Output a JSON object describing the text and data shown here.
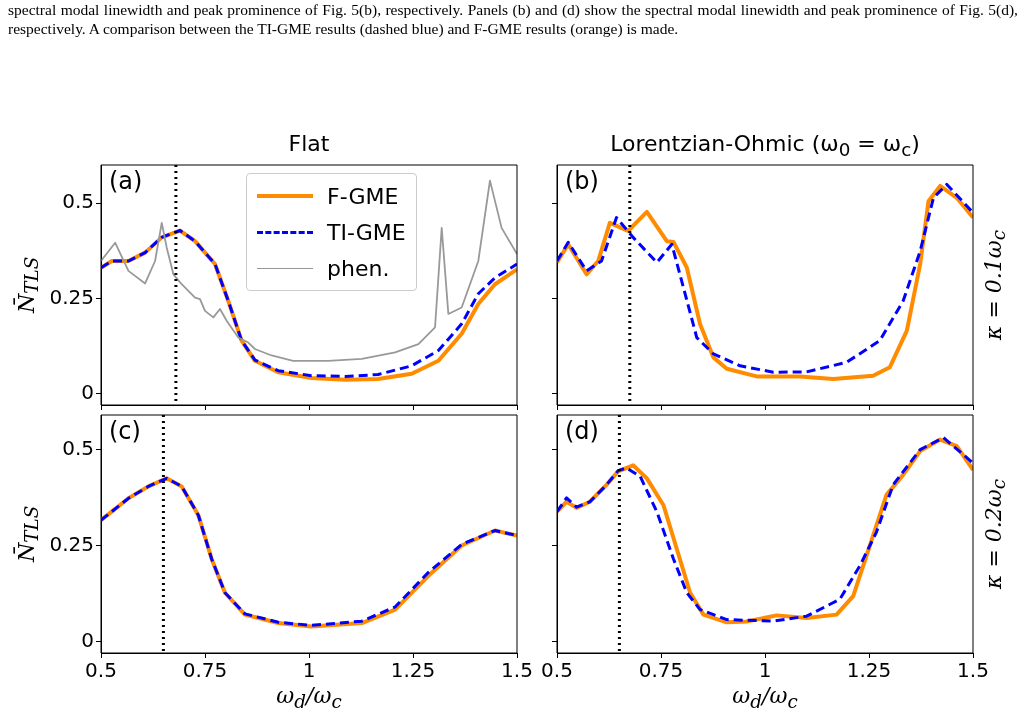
{
  "chart_data": [
    {
      "type": "other",
      "annotations": [
        "spectral modal linewidth and peak prominence of Fig. 5(b), respectively. Panels (b) and (d) show the spectral modal linewidth and peak prominence of Fig. 5(d), respectively. A comparison between the TI-GME results (dashed blue) and F-GME results (orange) is made."
      ]
    },
    {
      "type": "line",
      "title": "Flat",
      "ylabel": "N̄$_{TLS}$",
      "annotations": [
        "(a)"
      ],
      "xlim": [
        0.5,
        1.5
      ],
      "xticks": [
        0.5,
        0.75,
        1,
        1.25,
        1.5
      ],
      "ylim": [
        -0.03,
        0.6
      ],
      "yticks": [
        0,
        0.25,
        0.5
      ],
      "tick_labels": "y",
      "legend": "top",
      "ref_lines": [
        {
          "axis": "x",
          "value": 0.68,
          "color": "#000000",
          "line_style": "dotted"
        }
      ],
      "series": [
        {
          "name": "F-GME",
          "color": "#ff8c00",
          "line_style": "solid",
          "x": [
            0.5,
            0.526,
            0.566,
            0.606,
            0.646,
            0.69,
            0.726,
            0.774,
            0.806,
            0.838,
            0.87,
            0.926,
            1.006,
            1.087,
            1.166,
            1.247,
            1.311,
            1.367,
            1.407,
            1.447,
            1.5
          ],
          "values": [
            0.33,
            0.348,
            0.348,
            0.37,
            0.41,
            0.428,
            0.4,
            0.34,
            0.243,
            0.139,
            0.086,
            0.056,
            0.041,
            0.036,
            0.038,
            0.052,
            0.086,
            0.157,
            0.235,
            0.287,
            0.326
          ]
        },
        {
          "name": "TI-GME",
          "color": "#0000ff",
          "line_style": "dashed",
          "x": [
            0.5,
            0.526,
            0.566,
            0.606,
            0.646,
            0.69,
            0.726,
            0.774,
            0.806,
            0.838,
            0.87,
            0.926,
            1.006,
            1.087,
            1.166,
            1.247,
            1.311,
            1.367,
            1.407,
            1.447,
            1.5
          ],
          "values": [
            0.33,
            0.348,
            0.348,
            0.37,
            0.41,
            0.428,
            0.4,
            0.34,
            0.243,
            0.139,
            0.088,
            0.06,
            0.047,
            0.045,
            0.05,
            0.073,
            0.113,
            0.183,
            0.262,
            0.304,
            0.34
          ]
        },
        {
          "name": "phen.",
          "color": "#999999",
          "line_style": "solid",
          "x": [
            0.5,
            0.534,
            0.566,
            0.606,
            0.63,
            0.646,
            0.658,
            0.674,
            0.694,
            0.726,
            0.738,
            0.75,
            0.77,
            0.786,
            0.802,
            0.83,
            0.854,
            0.87,
            0.91,
            0.962,
            1.046,
            1.127,
            1.207,
            1.263,
            1.303,
            1.319,
            1.335,
            1.367,
            1.407,
            1.435,
            1.463,
            1.5
          ],
          "values": [
            0.348,
            0.396,
            0.322,
            0.289,
            0.348,
            0.448,
            0.383,
            0.313,
            0.287,
            0.252,
            0.248,
            0.217,
            0.2,
            0.222,
            0.191,
            0.147,
            0.134,
            0.117,
            0.1,
            0.086,
            0.086,
            0.091,
            0.108,
            0.13,
            0.174,
            0.435,
            0.209,
            0.226,
            0.348,
            0.559,
            0.435,
            0.366
          ]
        }
      ]
    },
    {
      "type": "line",
      "title": "Lorentzian-Ohmic (ω$_{0}$ = ω$_{c}$)",
      "y2label": "κ = 0.1ω$_{c}$",
      "annotations": [
        "(b)"
      ],
      "xlim": [
        0.5,
        1.5
      ],
      "xticks": [
        0.5,
        0.75,
        1,
        1.25,
        1.5
      ],
      "ylim": [
        -0.03,
        0.6
      ],
      "yticks": [
        0,
        0.25,
        0.5
      ],
      "tick_labels": false,
      "ref_lines": [
        {
          "axis": "x",
          "value": 0.675,
          "color": "#000000",
          "line_style": "dotted"
        }
      ],
      "series": [
        {
          "color": "#ff8c00",
          "line_style": "solid",
          "x": [
            0.5,
            0.527,
            0.571,
            0.599,
            0.627,
            0.671,
            0.716,
            0.764,
            0.78,
            0.812,
            0.844,
            0.876,
            0.908,
            0.98,
            1.084,
            1.164,
            1.26,
            1.3,
            1.341,
            1.373,
            1.393,
            1.421,
            1.461,
            1.5
          ],
          "values": [
            0.344,
            0.392,
            0.313,
            0.348,
            0.448,
            0.427,
            0.477,
            0.4,
            0.398,
            0.331,
            0.182,
            0.095,
            0.065,
            0.045,
            0.045,
            0.038,
            0.047,
            0.069,
            0.165,
            0.34,
            0.505,
            0.545,
            0.514,
            0.462
          ]
        },
        {
          "color": "#0000ff",
          "line_style": "dashed",
          "x": [
            0.5,
            0.527,
            0.571,
            0.607,
            0.643,
            0.683,
            0.74,
            0.776,
            0.804,
            0.836,
            0.876,
            0.94,
            1.02,
            1.1,
            1.196,
            1.276,
            1.332,
            1.373,
            1.405,
            1.437,
            1.5
          ],
          "values": [
            0.348,
            0.397,
            0.322,
            0.348,
            0.462,
            0.41,
            0.344,
            0.392,
            0.278,
            0.147,
            0.104,
            0.073,
            0.056,
            0.057,
            0.082,
            0.139,
            0.243,
            0.374,
            0.514,
            0.549,
            0.475
          ]
        }
      ]
    },
    {
      "type": "line",
      "xlabel": "ω$_{d}$/ω$_{c}$",
      "ylabel": "N̄$_{TLS}$",
      "annotations": [
        "(c)"
      ],
      "xlim": [
        0.5,
        1.5
      ],
      "xticks": [
        0.5,
        0.75,
        1,
        1.25,
        1.5
      ],
      "ylim": [
        -0.03,
        0.59
      ],
      "yticks": [
        0,
        0.25,
        0.5
      ],
      "ref_lines": [
        {
          "axis": "x",
          "value": 0.65,
          "color": "#000000",
          "line_style": "dotted"
        }
      ],
      "series": [
        {
          "color": "#ff8c00",
          "line_style": "solid",
          "x": [
            0.5,
            0.566,
            0.614,
            0.658,
            0.694,
            0.734,
            0.766,
            0.798,
            0.846,
            0.926,
            1.006,
            1.127,
            1.207,
            1.287,
            1.367,
            1.447,
            1.5
          ],
          "values": [
            0.316,
            0.373,
            0.404,
            0.425,
            0.404,
            0.329,
            0.215,
            0.127,
            0.07,
            0.048,
            0.039,
            0.048,
            0.083,
            0.171,
            0.25,
            0.289,
            0.276
          ]
        },
        {
          "color": "#0000ff",
          "line_style": "dashed",
          "x": [
            0.5,
            0.566,
            0.614,
            0.658,
            0.694,
            0.734,
            0.766,
            0.798,
            0.846,
            0.926,
            1.006,
            1.127,
            1.207,
            1.287,
            1.367,
            1.447,
            1.5
          ],
          "values": [
            0.316,
            0.373,
            0.404,
            0.425,
            0.404,
            0.329,
            0.215,
            0.127,
            0.072,
            0.05,
            0.042,
            0.053,
            0.09,
            0.18,
            0.253,
            0.289,
            0.276
          ]
        }
      ]
    },
    {
      "type": "line",
      "xlabel": "ω$_{d}$/ω$_{c}$",
      "y2label": "κ = 0.2ω$_{c}$",
      "annotations": [
        "(d)"
      ],
      "xlim": [
        0.5,
        1.5
      ],
      "xticks": [
        0.5,
        0.75,
        1,
        1.25,
        1.5
      ],
      "ylim": [
        -0.03,
        0.59
      ],
      "yticks": [
        0,
        0.25,
        0.5
      ],
      "tick_labels": "x",
      "ref_lines": [
        {
          "axis": "x",
          "value": 0.65,
          "color": "#000000",
          "line_style": "dotted"
        }
      ],
      "series": [
        {
          "color": "#ff8c00",
          "line_style": "solid",
          "x": [
            0.5,
            0.523,
            0.547,
            0.579,
            0.619,
            0.647,
            0.683,
            0.716,
            0.756,
            0.788,
            0.82,
            0.852,
            0.908,
            0.956,
            1.028,
            1.1,
            1.172,
            1.212,
            1.252,
            1.292,
            1.332,
            1.373,
            1.421,
            1.461,
            1.5
          ],
          "values": [
            0.338,
            0.364,
            0.348,
            0.364,
            0.408,
            0.443,
            0.459,
            0.425,
            0.355,
            0.241,
            0.127,
            0.07,
            0.05,
            0.052,
            0.068,
            0.061,
            0.07,
            0.118,
            0.25,
            0.382,
            0.434,
            0.496,
            0.526,
            0.509,
            0.447
          ]
        },
        {
          "color": "#0000ff",
          "line_style": "dashed",
          "x": [
            0.5,
            0.523,
            0.547,
            0.579,
            0.619,
            0.647,
            0.667,
            0.7,
            0.74,
            0.78,
            0.812,
            0.844,
            0.908,
            1.02,
            1.1,
            1.18,
            1.228,
            1.268,
            1.308,
            1.373,
            1.429,
            1.5
          ],
          "values": [
            0.338,
            0.374,
            0.35,
            0.364,
            0.408,
            0.445,
            0.452,
            0.43,
            0.338,
            0.215,
            0.127,
            0.083,
            0.057,
            0.053,
            0.066,
            0.11,
            0.197,
            0.285,
            0.408,
            0.5,
            0.531,
            0.465
          ]
        }
      ]
    }
  ]
}
